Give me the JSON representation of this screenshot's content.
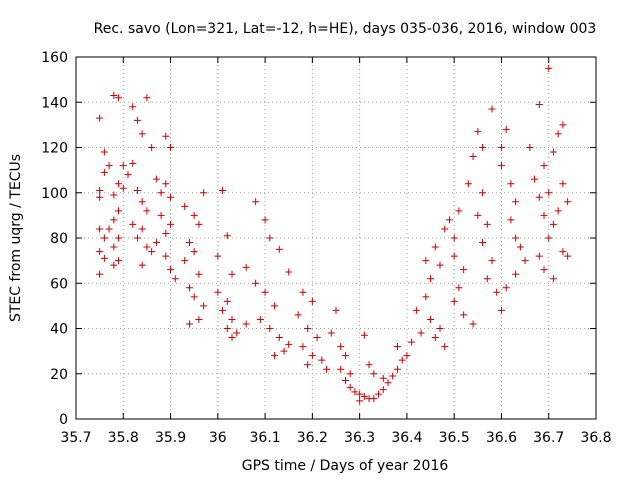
{
  "chart_data": {
    "type": "scatter",
    "title": "Rec. savo (Lon=321, Lat=-12, h=HE), days 035-036, 2016, window 003",
    "xlabel": "GPS time / Days of year 2016",
    "ylabel": "STEC from uqrg / TECUs",
    "xlim": [
      35.7,
      36.8
    ],
    "ylim": [
      0,
      160
    ],
    "xticks": [
      "35.7",
      "35.8",
      "35.9",
      "36",
      "36.1",
      "36.2",
      "36.3",
      "36.4",
      "36.5",
      "36.6",
      "36.7",
      "36.8"
    ],
    "yticks": [
      "0",
      "20",
      "40",
      "60",
      "80",
      "100",
      "120",
      "140",
      "160"
    ],
    "grid": true,
    "marker": "+",
    "color": "#cc0000",
    "series": [
      {
        "name": "STEC",
        "points": [
          [
            35.75,
            133
          ],
          [
            35.75,
            101
          ],
          [
            35.75,
            98
          ],
          [
            35.76,
            118
          ],
          [
            35.77,
            112
          ],
          [
            35.76,
            109
          ],
          [
            35.75,
            84
          ],
          [
            35.76,
            80
          ],
          [
            35.75,
            74
          ],
          [
            35.76,
            71
          ],
          [
            35.75,
            64
          ],
          [
            35.78,
            143
          ],
          [
            35.79,
            142
          ],
          [
            35.8,
            112
          ],
          [
            35.79,
            104
          ],
          [
            35.8,
            102
          ],
          [
            35.78,
            99
          ],
          [
            35.79,
            92
          ],
          [
            35.78,
            88
          ],
          [
            35.77,
            84
          ],
          [
            35.79,
            80
          ],
          [
            35.78,
            76
          ],
          [
            35.79,
            70
          ],
          [
            35.78,
            68
          ],
          [
            35.82,
            138
          ],
          [
            35.83,
            132
          ],
          [
            35.85,
            142
          ],
          [
            35.84,
            126
          ],
          [
            35.86,
            120
          ],
          [
            35.82,
            113
          ],
          [
            35.81,
            108
          ],
          [
            35.83,
            101
          ],
          [
            35.84,
            96
          ],
          [
            35.85,
            92
          ],
          [
            35.82,
            86
          ],
          [
            35.84,
            84
          ],
          [
            35.83,
            80
          ],
          [
            35.85,
            76
          ],
          [
            35.86,
            74
          ],
          [
            35.84,
            68
          ],
          [
            35.89,
            125
          ],
          [
            35.9,
            120
          ],
          [
            35.87,
            106
          ],
          [
            35.88,
            100
          ],
          [
            35.89,
            104
          ],
          [
            35.9,
            98
          ],
          [
            35.88,
            90
          ],
          [
            35.9,
            86
          ],
          [
            35.89,
            82
          ],
          [
            35.87,
            78
          ],
          [
            35.89,
            72
          ],
          [
            35.9,
            66
          ],
          [
            35.91,
            62
          ],
          [
            35.93,
            94
          ],
          [
            35.95,
            90
          ],
          [
            35.97,
            100
          ],
          [
            35.96,
            86
          ],
          [
            35.94,
            78
          ],
          [
            35.95,
            74
          ],
          [
            35.93,
            70
          ],
          [
            35.96,
            64
          ],
          [
            35.94,
            58
          ],
          [
            35.95,
            54
          ],
          [
            35.97,
            50
          ],
          [
            35.96,
            44
          ],
          [
            35.94,
            42
          ],
          [
            36.01,
            101
          ],
          [
            36.02,
            81
          ],
          [
            36.0,
            72
          ],
          [
            36.03,
            64
          ],
          [
            36.0,
            56
          ],
          [
            36.02,
            52
          ],
          [
            36.01,
            48
          ],
          [
            36.03,
            44
          ],
          [
            36.02,
            40
          ],
          [
            36.04,
            38
          ],
          [
            36.03,
            36
          ],
          [
            36.06,
            42
          ],
          [
            36.08,
            96
          ],
          [
            36.1,
            88
          ],
          [
            36.11,
            80
          ],
          [
            36.13,
            75
          ],
          [
            36.06,
            67
          ],
          [
            36.08,
            60
          ],
          [
            36.1,
            56
          ],
          [
            36.12,
            50
          ],
          [
            36.09,
            44
          ],
          [
            36.11,
            40
          ],
          [
            36.13,
            36
          ],
          [
            36.15,
            33
          ],
          [
            36.14,
            30
          ],
          [
            36.12,
            28
          ],
          [
            36.15,
            65
          ],
          [
            36.18,
            56
          ],
          [
            36.2,
            52
          ],
          [
            36.17,
            46
          ],
          [
            36.19,
            40
          ],
          [
            36.21,
            36
          ],
          [
            36.18,
            32
          ],
          [
            36.2,
            28
          ],
          [
            36.22,
            26
          ],
          [
            36.19,
            24
          ],
          [
            36.23,
            22
          ],
          [
            36.25,
            48
          ],
          [
            36.24,
            38
          ],
          [
            36.26,
            32
          ],
          [
            36.27,
            28
          ],
          [
            36.26,
            22
          ],
          [
            36.28,
            20
          ],
          [
            36.27,
            17
          ],
          [
            36.28,
            14
          ],
          [
            36.29,
            12
          ],
          [
            36.3,
            11
          ],
          [
            36.31,
            10
          ],
          [
            36.32,
            9
          ],
          [
            36.3,
            8
          ],
          [
            36.33,
            9
          ],
          [
            36.34,
            11
          ],
          [
            36.35,
            13
          ],
          [
            36.31,
            37
          ],
          [
            36.32,
            24
          ],
          [
            36.33,
            20
          ],
          [
            36.35,
            18
          ],
          [
            36.36,
            16
          ],
          [
            36.37,
            19
          ],
          [
            36.38,
            22
          ],
          [
            36.39,
            26
          ],
          [
            36.4,
            28
          ],
          [
            36.38,
            32
          ],
          [
            36.41,
            34
          ],
          [
            36.43,
            38
          ],
          [
            36.42,
            48
          ],
          [
            36.44,
            54
          ],
          [
            36.45,
            62
          ],
          [
            36.44,
            70
          ],
          [
            36.46,
            76
          ],
          [
            36.47,
            68
          ],
          [
            36.45,
            44
          ],
          [
            36.47,
            40
          ],
          [
            36.46,
            36
          ],
          [
            36.48,
            32
          ],
          [
            36.48,
            84
          ],
          [
            36.49,
            88
          ],
          [
            36.51,
            92
          ],
          [
            36.5,
            80
          ],
          [
            36.5,
            72
          ],
          [
            36.52,
            66
          ],
          [
            36.51,
            58
          ],
          [
            36.5,
            52
          ],
          [
            36.52,
            46
          ],
          [
            36.54,
            42
          ],
          [
            36.53,
            104
          ],
          [
            36.54,
            116
          ],
          [
            36.55,
            127
          ],
          [
            36.56,
            120
          ],
          [
            36.56,
            100
          ],
          [
            36.55,
            90
          ],
          [
            36.57,
            86
          ],
          [
            36.56,
            78
          ],
          [
            36.58,
            70
          ],
          [
            36.57,
            62
          ],
          [
            36.59,
            56
          ],
          [
            36.6,
            48
          ],
          [
            36.58,
            137
          ],
          [
            36.6,
            120
          ],
          [
            36.61,
            128
          ],
          [
            36.6,
            112
          ],
          [
            36.62,
            104
          ],
          [
            36.63,
            96
          ],
          [
            36.62,
            88
          ],
          [
            36.63,
            80
          ],
          [
            36.64,
            76
          ],
          [
            36.65,
            70
          ],
          [
            36.63,
            64
          ],
          [
            36.61,
            58
          ],
          [
            36.66,
            120
          ],
          [
            36.67,
            106
          ],
          [
            36.68,
            139
          ],
          [
            36.69,
            112
          ],
          [
            36.68,
            98
          ],
          [
            36.7,
            100
          ],
          [
            36.69,
            90
          ],
          [
            36.7,
            80
          ],
          [
            36.68,
            72
          ],
          [
            36.69,
            66
          ],
          [
            36.71,
            62
          ],
          [
            36.7,
            155
          ],
          [
            36.71,
            118
          ],
          [
            36.72,
            126
          ],
          [
            36.73,
            130
          ],
          [
            36.73,
            104
          ],
          [
            36.74,
            96
          ],
          [
            36.72,
            92
          ],
          [
            36.71,
            86
          ],
          [
            36.73,
            74
          ],
          [
            36.74,
            72
          ]
        ]
      }
    ]
  }
}
